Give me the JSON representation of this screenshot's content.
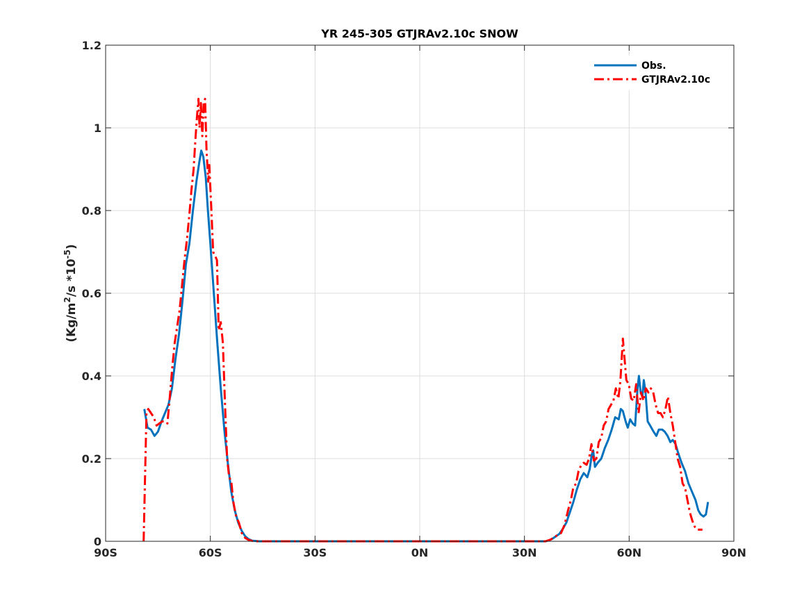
{
  "chart_data": {
    "type": "line",
    "title": "YR 245-305 GTJRAv2.10c SNOW",
    "xlabel": "",
    "ylabel": "(Kg/m²/s *10⁻⁵)",
    "ylabel_parts": {
      "pre": "(Kg/m",
      "sup1": "2",
      "mid": "/s *10",
      "sup2": "-5",
      "post": ")"
    },
    "xlim": [
      -90,
      90
    ],
    "ylim": [
      0,
      1.2
    ],
    "xticks": [
      -90,
      -60,
      -30,
      0,
      30,
      60,
      90
    ],
    "xtick_labels": [
      "90S",
      "60S",
      "30S",
      "0N",
      "30N",
      "60N",
      "90N"
    ],
    "yticks": [
      0,
      0.2,
      0.4,
      0.6,
      0.8,
      1,
      1.2
    ],
    "ytick_labels": [
      "0",
      "0.2",
      "0.4",
      "0.6",
      "0.8",
      "1",
      "1.2"
    ],
    "grid": true,
    "legend_position": "top-right",
    "series": [
      {
        "name": "Obs.",
        "color": "#0072BD",
        "style": "solid",
        "points": [
          [
            -78.9,
            0.32
          ],
          [
            -78,
            0.275
          ],
          [
            -77,
            0.27
          ],
          [
            -76,
            0.255
          ],
          [
            -75,
            0.265
          ],
          [
            -74,
            0.29
          ],
          [
            -73,
            0.31
          ],
          [
            -72,
            0.33
          ],
          [
            -71,
            0.37
          ],
          [
            -70,
            0.44
          ],
          [
            -69,
            0.5
          ],
          [
            -68,
            0.58
          ],
          [
            -67,
            0.67
          ],
          [
            -66,
            0.72
          ],
          [
            -65,
            0.8
          ],
          [
            -64,
            0.87
          ],
          [
            -63.2,
            0.915
          ],
          [
            -62.6,
            0.945
          ],
          [
            -62,
            0.93
          ],
          [
            -61.3,
            0.88
          ],
          [
            -60.7,
            0.8
          ],
          [
            -60,
            0.72
          ],
          [
            -59,
            0.6
          ],
          [
            -58,
            0.48
          ],
          [
            -57,
            0.37
          ],
          [
            -56,
            0.27
          ],
          [
            -55,
            0.19
          ],
          [
            -54,
            0.12
          ],
          [
            -53,
            0.075
          ],
          [
            -52,
            0.045
          ],
          [
            -51,
            0.025
          ],
          [
            -50,
            0.012
          ],
          [
            -49,
            0.005
          ],
          [
            -48,
            0.0015
          ],
          [
            -46,
            0
          ],
          [
            36,
            0
          ],
          [
            37,
            0.002
          ],
          [
            38,
            0.006
          ],
          [
            39,
            0.012
          ],
          [
            40,
            0.018
          ],
          [
            41,
            0.03
          ],
          [
            42,
            0.045
          ],
          [
            43,
            0.07
          ],
          [
            44,
            0.095
          ],
          [
            45,
            0.125
          ],
          [
            46,
            0.15
          ],
          [
            47,
            0.165
          ],
          [
            48,
            0.155
          ],
          [
            48.7,
            0.175
          ],
          [
            49.3,
            0.21
          ],
          [
            49.7,
            0.22
          ],
          [
            50.2,
            0.18
          ],
          [
            51,
            0.19
          ],
          [
            52,
            0.2
          ],
          [
            53,
            0.225
          ],
          [
            54,
            0.245
          ],
          [
            55,
            0.27
          ],
          [
            56,
            0.3
          ],
          [
            57,
            0.295
          ],
          [
            57.6,
            0.32
          ],
          [
            58.2,
            0.315
          ],
          [
            59,
            0.29
          ],
          [
            59.6,
            0.275
          ],
          [
            60.3,
            0.295
          ],
          [
            61,
            0.285
          ],
          [
            61.7,
            0.28
          ],
          [
            62.4,
            0.37
          ],
          [
            62.8,
            0.4
          ],
          [
            63.3,
            0.36
          ],
          [
            63.8,
            0.35
          ],
          [
            64.2,
            0.39
          ],
          [
            64.7,
            0.36
          ],
          [
            65.3,
            0.29
          ],
          [
            66,
            0.28
          ],
          [
            67,
            0.265
          ],
          [
            67.8,
            0.255
          ],
          [
            68.5,
            0.27
          ],
          [
            69.5,
            0.27
          ],
          [
            70.2,
            0.265
          ],
          [
            71,
            0.255
          ],
          [
            71.8,
            0.24
          ],
          [
            72.5,
            0.245
          ],
          [
            73.3,
            0.235
          ],
          [
            74,
            0.215
          ],
          [
            75,
            0.19
          ],
          [
            76,
            0.17
          ],
          [
            77,
            0.14
          ],
          [
            78,
            0.12
          ],
          [
            79,
            0.1
          ],
          [
            79.8,
            0.075
          ],
          [
            80.5,
            0.065
          ],
          [
            81.3,
            0.06
          ],
          [
            82,
            0.065
          ],
          [
            82.6,
            0.095
          ]
        ]
      },
      {
        "name": "GTJRAv2.10c",
        "color": "#FF0000",
        "style": "dashdot",
        "points": [
          [
            -79.1,
            0
          ],
          [
            -78.6,
            0.2
          ],
          [
            -78.3,
            0.31
          ],
          [
            -77.8,
            0.32
          ],
          [
            -77,
            0.31
          ],
          [
            -76.2,
            0.3
          ],
          [
            -75.4,
            0.28
          ],
          [
            -74.6,
            0.285
          ],
          [
            -73.8,
            0.29
          ],
          [
            -73,
            0.29
          ],
          [
            -72.3,
            0.285
          ],
          [
            -71.6,
            0.35
          ],
          [
            -70.9,
            0.42
          ],
          [
            -70.2,
            0.48
          ],
          [
            -69.5,
            0.52
          ],
          [
            -68.8,
            0.56
          ],
          [
            -68.1,
            0.62
          ],
          [
            -67.4,
            0.68
          ],
          [
            -66.7,
            0.73
          ],
          [
            -66,
            0.79
          ],
          [
            -65.4,
            0.85
          ],
          [
            -64.8,
            0.9
          ],
          [
            -64.3,
            0.97
          ],
          [
            -63.8,
            1.03
          ],
          [
            -63.4,
            1.07
          ],
          [
            -63.1,
            1.0
          ],
          [
            -62.7,
            1.06
          ],
          [
            -62.3,
            0.98
          ],
          [
            -61.9,
            1.06
          ],
          [
            -61.5,
            1.07
          ],
          [
            -61.1,
            0.95
          ],
          [
            -60.6,
            0.87
          ],
          [
            -60.3,
            0.91
          ],
          [
            -59.7,
            0.8
          ],
          [
            -59.2,
            0.7
          ],
          [
            -58.6,
            0.69
          ],
          [
            -58.1,
            0.68
          ],
          [
            -57.6,
            0.51
          ],
          [
            -57,
            0.53
          ],
          [
            -56.4,
            0.48
          ],
          [
            -55.8,
            0.33
          ],
          [
            -55.2,
            0.2
          ],
          [
            -54.6,
            0.155
          ],
          [
            -54,
            0.145
          ],
          [
            -53.4,
            0.095
          ],
          [
            -52.6,
            0.06
          ],
          [
            -51.8,
            0.045
          ],
          [
            -51,
            0.02
          ],
          [
            -50,
            0.008
          ],
          [
            -49,
            0.003
          ],
          [
            -47.5,
            0
          ],
          [
            36,
            0
          ],
          [
            37.5,
            0.004
          ],
          [
            38.5,
            0.01
          ],
          [
            39.5,
            0.015
          ],
          [
            40.5,
            0.02
          ],
          [
            41.5,
            0.04
          ],
          [
            42.5,
            0.075
          ],
          [
            43.3,
            0.1
          ],
          [
            44,
            0.13
          ],
          [
            44.8,
            0.14
          ],
          [
            45.5,
            0.17
          ],
          [
            46.3,
            0.185
          ],
          [
            47,
            0.19
          ],
          [
            47.8,
            0.185
          ],
          [
            48.5,
            0.2
          ],
          [
            49.2,
            0.235
          ],
          [
            49.9,
            0.195
          ],
          [
            50.6,
            0.2
          ],
          [
            51.3,
            0.24
          ],
          [
            52,
            0.25
          ],
          [
            52.7,
            0.28
          ],
          [
            53.4,
            0.29
          ],
          [
            54.1,
            0.32
          ],
          [
            54.8,
            0.33
          ],
          [
            55.5,
            0.34
          ],
          [
            56.2,
            0.37
          ],
          [
            56.9,
            0.345
          ],
          [
            57.5,
            0.39
          ],
          [
            58.2,
            0.49
          ],
          [
            58.6,
            0.45
          ],
          [
            59.2,
            0.39
          ],
          [
            59.9,
            0.38
          ],
          [
            60.6,
            0.345
          ],
          [
            61.3,
            0.34
          ],
          [
            62,
            0.38
          ],
          [
            62.7,
            0.31
          ],
          [
            63.4,
            0.36
          ],
          [
            64.1,
            0.34
          ],
          [
            64.8,
            0.37
          ],
          [
            65.5,
            0.36
          ],
          [
            66.2,
            0.37
          ],
          [
            66.9,
            0.36
          ],
          [
            67.6,
            0.33
          ],
          [
            68.3,
            0.31
          ],
          [
            69,
            0.31
          ],
          [
            69.7,
            0.3
          ],
          [
            70.4,
            0.32
          ],
          [
            71.1,
            0.35
          ],
          [
            71.8,
            0.31
          ],
          [
            72.5,
            0.28
          ],
          [
            73.2,
            0.24
          ],
          [
            73.9,
            0.2
          ],
          [
            74.6,
            0.18
          ],
          [
            75.3,
            0.14
          ],
          [
            76,
            0.13
          ],
          [
            76.7,
            0.1
          ],
          [
            77.4,
            0.07
          ],
          [
            78.1,
            0.05
          ],
          [
            78.8,
            0.035
          ],
          [
            79.5,
            0.028
          ],
          [
            80.2,
            0.028
          ],
          [
            81,
            0.028
          ]
        ]
      }
    ]
  }
}
